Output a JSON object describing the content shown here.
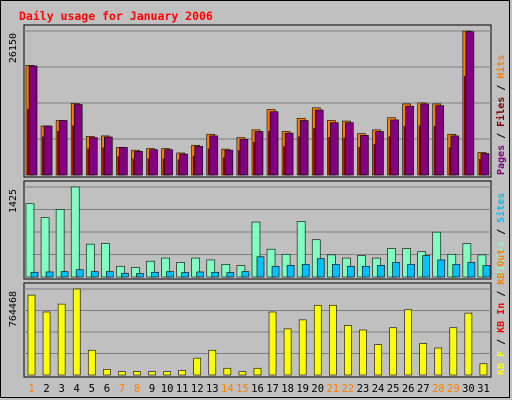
{
  "chart_data": {
    "type": "bar",
    "title": "Daily usage for January 2006",
    "categories": [
      "1",
      "2",
      "3",
      "4",
      "5",
      "6",
      "7",
      "8",
      "9",
      "10",
      "11",
      "12",
      "13",
      "14",
      "15",
      "16",
      "17",
      "18",
      "19",
      "20",
      "21",
      "22",
      "23",
      "24",
      "25",
      "26",
      "27",
      "28",
      "29",
      "30",
      "31"
    ],
    "weekend_days": [
      "1",
      "7",
      "8",
      "14",
      "15",
      "21",
      "22",
      "28",
      "29"
    ],
    "grid": true,
    "panels": [
      {
        "id": "pages-files-hits",
        "ymax_label": "26150",
        "ylim": [
          0,
          26150
        ],
        "legend": [
          {
            "label": "Pages",
            "color": "#800080"
          },
          {
            "label": "Files",
            "color": "#800000"
          },
          {
            "label": "Hits",
            "color": "#ff8000"
          }
        ],
        "series": [
          {
            "name": "Hits",
            "color": "#ff8000",
            "values": [
              19900,
              8900,
              9900,
              13000,
              7000,
              7100,
              5000,
              4500,
              4800,
              4800,
              4000,
              5400,
              7400,
              4700,
              6800,
              8200,
              11900,
              7900,
              10300,
              12200,
              9900,
              9800,
              7500,
              8200,
              10400,
              12900,
              13100,
              12900,
              7400,
              26150,
              4100
            ]
          },
          {
            "name": "Files",
            "color": "#800000",
            "values": [
              12000,
              7000,
              8000,
              9000,
              4800,
              5000,
              3400,
              3000,
              3000,
              3000,
              2800,
              3500,
              4800,
              3200,
              4500,
              6000,
              8000,
              5200,
              7000,
              8500,
              6900,
              6800,
              5100,
              5600,
              7000,
              8900,
              9000,
              8900,
              5000,
              18000,
              2900
            ]
          },
          {
            "name": "Pages",
            "color": "#800080",
            "values": [
              19800,
              8900,
              9900,
              12800,
              6800,
              6900,
              5000,
              4300,
              4600,
              4600,
              3800,
              5200,
              7100,
              4500,
              6500,
              7900,
              11500,
              7600,
              9900,
              11800,
              9500,
              9500,
              7200,
              7900,
              10000,
              12500,
              12900,
              12600,
              7100,
              26000,
              3900
            ]
          }
        ]
      },
      {
        "id": "visits-sites",
        "ymax_label": "1425",
        "ylim": [
          0,
          1425
        ],
        "legend": [
          {
            "label": "Visits",
            "color": "#80ffc0"
          },
          {
            "label": "Sites",
            "color": "#00c0ff"
          }
        ],
        "series": [
          {
            "name": "Visits",
            "color": "#80ffc0",
            "values": [
              1160,
              940,
              1070,
              1425,
              520,
              530,
              170,
              150,
              250,
              300,
              230,
              300,
              270,
              200,
              180,
              870,
              440,
              360,
              880,
              590,
              350,
              300,
              340,
              300,
              450,
              450,
              400,
              710,
              360,
              530,
              350
            ]
          },
          {
            "name": "Sites",
            "color": "#00c0ff",
            "values": [
              75,
              80,
              85,
              115,
              85,
              85,
              60,
              55,
              75,
              85,
              70,
              80,
              75,
              70,
              85,
              320,
              170,
              185,
              200,
              290,
              200,
              170,
              170,
              185,
              230,
              200,
              340,
              270,
              200,
              230,
              180
            ]
          }
        ]
      },
      {
        "id": "kbytes",
        "ymax_label": "764468",
        "ylim": [
          0,
          764468
        ],
        "legend": [
          {
            "label": "KB F",
            "color": "#ffff00"
          },
          {
            "label": "KB In",
            "color": "#ff0000"
          },
          {
            "label": "KB Out",
            "color": "#ff8000"
          }
        ],
        "series": [
          {
            "name": "KB F",
            "color": "#ffff00",
            "values": [
              710000,
              560000,
              630000,
              764468,
              220000,
              50000,
              30000,
              30000,
              30000,
              30000,
              40000,
              150000,
              220000,
              60000,
              30000,
              60000,
              560000,
              410000,
              490000,
              620000,
              620000,
              440000,
              400000,
              270000,
              420000,
              580000,
              280000,
              240000,
              420000,
              550000,
              100000
            ]
          }
        ]
      }
    ]
  }
}
